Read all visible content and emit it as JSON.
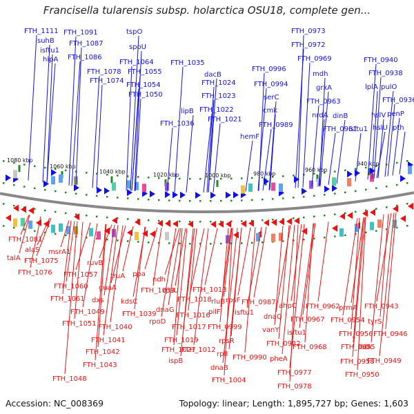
{
  "title": "Francisella tularensis subsp. holarctica OSU18, complete gen...",
  "footer": {
    "accession": "Accession: NC_008369",
    "summary": "Topology: linear; Length: 1,895,727 bp; Genes: 1,603"
  },
  "colors": {
    "forward": "#1010ee",
    "reverse": "#ee1010",
    "backbone": "#888888",
    "tick": "#228822"
  },
  "positions": [
    {
      "label": "1080 kbp"
    },
    {
      "label": "1060 kbp"
    },
    {
      "label": "1040 kbp"
    },
    {
      "label": "1020 kbp"
    },
    {
      "label": "1000 kbp"
    },
    {
      "label": "980 kbp"
    },
    {
      "label": "960 kbp"
    },
    {
      "label": "940 kbp"
    }
  ],
  "forward_genes": [
    "FTH_1111",
    "suhB",
    "isftu1",
    "hipA",
    "FTH_1091",
    "FTH_1087",
    "FTH_1086",
    "FTH_1078",
    "FTH_1074",
    "tspO",
    "spoU",
    "FTH_1064",
    "FTH_1055",
    "FTH_1054",
    "FTH_1050",
    "FTH_1035",
    "lipB",
    "FTH_1036",
    "dacB",
    "FTH_1024",
    "FTH_1023",
    "FTH_1022",
    "FTH_1021",
    "FTH_0996",
    "FTH_0994",
    "serC",
    "cmk",
    "FTH_0989",
    "hemF",
    "FTH_0973",
    "FTH_0972",
    "FTH_0969",
    "mdh",
    "grxA",
    "FTH_0963",
    "nrdA",
    "dinB",
    "FTH_0961",
    "isftu1",
    "FTH_0940",
    "FTH_0938",
    "lplA",
    "pulO",
    "FTH_0936",
    "hslV",
    "hslU",
    "penP",
    "pth"
  ],
  "reverse_genes": [
    "FTH_1081",
    "talA",
    "alaS",
    "FTH_1075",
    "msrA1",
    "FTH_1076",
    "ruvB",
    "FTH_1057",
    "FTH_1060",
    "truA",
    "ppa",
    "guaA",
    "FTH_1061",
    "dxs",
    "kdsC",
    "FTH_1049",
    "FTH_1051",
    "FTH_1039",
    "FTH_1040",
    "FTH_1041",
    "FTH_1042",
    "FTH_1043",
    "FTH_1048",
    "ndh",
    "FTH_1033",
    "rpsU",
    "dnaG",
    "rpoD",
    "FTH_1027",
    "FTH_1019",
    "ispB",
    "FTH_1018",
    "FTH_1016",
    "FTH_1017",
    "FTH_1013",
    "FTH_1012",
    "rluB",
    "pilF",
    "rpsF",
    "isftu1",
    "FTH_0999",
    "rpsR",
    "rplI",
    "dnaB",
    "FTH_1004",
    "FTH_0990",
    "FTH_0987",
    "dnaQ",
    "vanY",
    "FTH_0982",
    "pheA",
    "FTH_0977",
    "FTH_0978",
    "ahpC",
    "FTH_0967",
    "isftu1",
    "FTH_0968",
    "FTH_0962",
    "prmA",
    "FTH_0954",
    "FTH_0956",
    "FTH_0955",
    "FTH_0958",
    "FTH_0943",
    "tyrS",
    "FTH_0946",
    "lldA",
    "FTH_0949",
    "FTH_0950"
  ]
}
